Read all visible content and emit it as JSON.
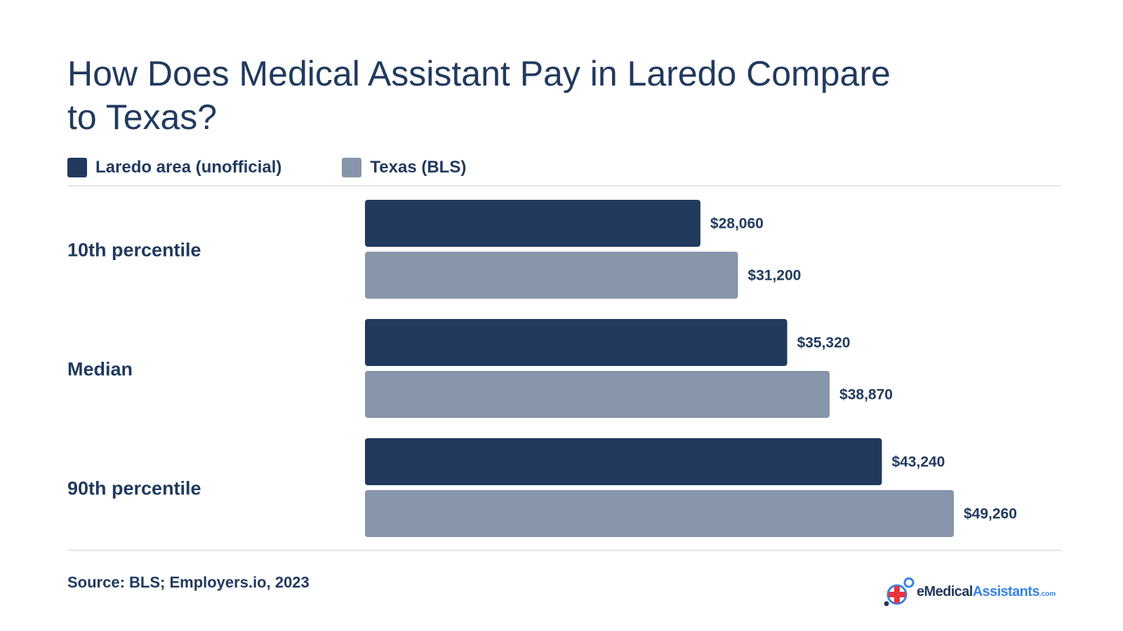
{
  "title": "How Does Medical Assistant Pay in Laredo Compare to Texas?",
  "legend": [
    {
      "label": "Laredo area (unofficial)",
      "color": "#213a5e"
    },
    {
      "label": "Texas (BLS)",
      "color": "#8795aa"
    }
  ],
  "source": "Source: BLS; Employers.io, 2023",
  "logo": {
    "prefix": "eMedical",
    "highlight": "Assistants",
    "suffix": ".com",
    "icon": "medical-cross-icon"
  },
  "chart_data": {
    "type": "bar",
    "orientation": "horizontal",
    "categories": [
      "10th percentile",
      "Median",
      "90th percentile"
    ],
    "series": [
      {
        "name": "Laredo area (unofficial)",
        "color": "#213a5e",
        "values": [
          28060,
          35320,
          43240
        ],
        "labels": [
          "$28,060",
          "$35,320",
          "$43,240"
        ]
      },
      {
        "name": "Texas (BLS)",
        "color": "#8795aa",
        "values": [
          31200,
          38870,
          49260
        ],
        "labels": [
          "$31,200",
          "$38,870",
          "$49,260"
        ]
      }
    ],
    "legend_position": "top-left",
    "grid": false
  }
}
